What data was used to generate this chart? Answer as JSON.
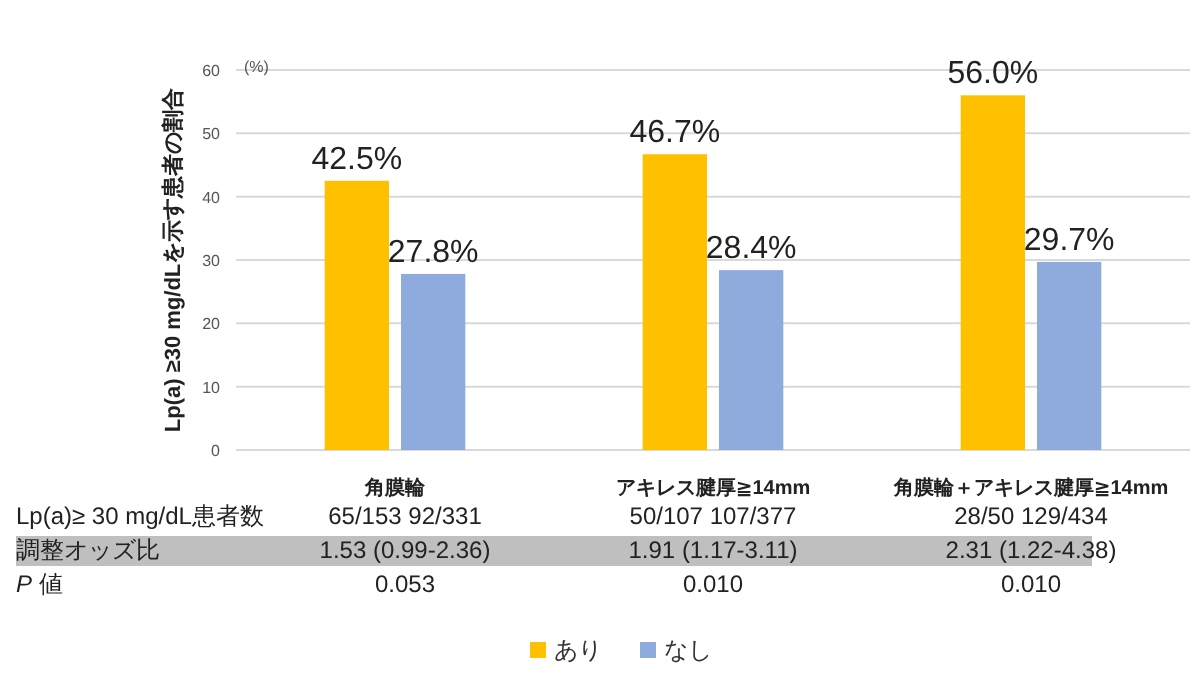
{
  "chart_data": {
    "type": "bar",
    "ylabel": "Lp(a) ≥30 mg/dLを示す患者の割合",
    "categories": [
      "角膜輪",
      "アキレス腱厚≧14mm",
      "角膜輪＋アキレス腱厚≧14mm"
    ],
    "series": [
      {
        "name": "あり",
        "color": "#ffc000",
        "values": [
          42.5,
          46.7,
          56.0
        ],
        "value_labels": [
          "42.5%",
          "46.7%",
          "56.0%"
        ]
      },
      {
        "name": "なし",
        "color": "#8faadc",
        "values": [
          27.8,
          28.4,
          29.7
        ],
        "value_labels": [
          "27.8%",
          "28.4%",
          "29.7%"
        ]
      }
    ],
    "ylim": [
      0,
      60
    ],
    "yticks": [
      0,
      10,
      20,
      30,
      40,
      50,
      60
    ],
    "grid": "y",
    "legend": "bottom",
    "annotations": [
      "(%)",
      "Lp(a)≥ 30 mg/dL患者数",
      "65/153  92/331",
      "50/107  107/377",
      "28/50  129/434",
      "調整オッズ比",
      "1.53 (0.99-2.36)",
      "1.91 (1.17-3.11)",
      "2.31 (1.22-4.38)",
      "P 値",
      "0.053",
      "0.010",
      "0.010"
    ]
  }
}
